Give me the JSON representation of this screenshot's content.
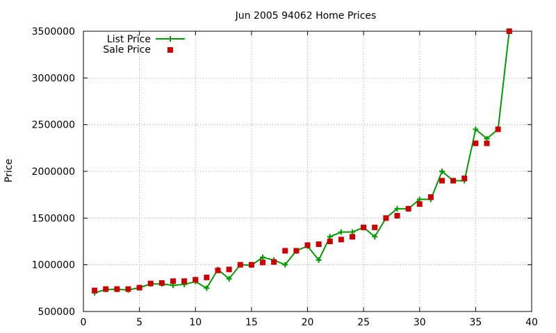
{
  "chart_data": {
    "type": "line",
    "title": "Jun 2005 94062 Home Prices",
    "xlabel": "",
    "ylabel": "Price",
    "xlim": [
      0,
      40
    ],
    "ylim": [
      500000,
      3500000
    ],
    "xticks": [
      0,
      5,
      10,
      15,
      20,
      25,
      30,
      35,
      40
    ],
    "yticks": [
      500000,
      1000000,
      1500000,
      2000000,
      2500000,
      3000000,
      3500000
    ],
    "grid": true,
    "legend_position": "top-left",
    "series": [
      {
        "name": "List Price",
        "style": "line-plus",
        "color": "#009900",
        "x": [
          1,
          2,
          3,
          4,
          5,
          6,
          7,
          8,
          9,
          10,
          11,
          12,
          13,
          14,
          15,
          16,
          17,
          18,
          19,
          20,
          21,
          22,
          23,
          24,
          25,
          26,
          27,
          28,
          29,
          30,
          31,
          32,
          33,
          34,
          35,
          36,
          37,
          38
        ],
        "y": [
          700000,
          735000,
          738000,
          730000,
          755000,
          795000,
          795000,
          780000,
          790000,
          820000,
          750000,
          950000,
          850000,
          1000000,
          995000,
          1080000,
          1050000,
          1000000,
          1150000,
          1200000,
          1050000,
          1300000,
          1350000,
          1350000,
          1400000,
          1300000,
          1500000,
          1600000,
          1600000,
          1700000,
          1700000,
          2000000,
          1900000,
          1900000,
          2450000,
          2350000,
          2450000,
          3500000
        ]
      },
      {
        "name": "Sale Price",
        "style": "square",
        "color": "#cc0000",
        "x": [
          1,
          2,
          3,
          4,
          5,
          6,
          7,
          8,
          9,
          10,
          11,
          12,
          13,
          14,
          15,
          16,
          17,
          18,
          19,
          20,
          21,
          22,
          23,
          24,
          25,
          26,
          27,
          28,
          29,
          30,
          31,
          32,
          33,
          34,
          35,
          36,
          37,
          38
        ],
        "y": [
          725000,
          740000,
          740000,
          740000,
          755000,
          800000,
          805000,
          825000,
          825000,
          840000,
          865000,
          940000,
          950000,
          1000000,
          1000000,
          1025000,
          1030000,
          1150000,
          1150000,
          1210000,
          1220000,
          1250000,
          1270000,
          1300000,
          1400000,
          1400000,
          1500000,
          1525000,
          1600000,
          1650000,
          1725000,
          1900000,
          1900000,
          1925000,
          2300000,
          2300000,
          2450000,
          3500000
        ]
      }
    ]
  }
}
